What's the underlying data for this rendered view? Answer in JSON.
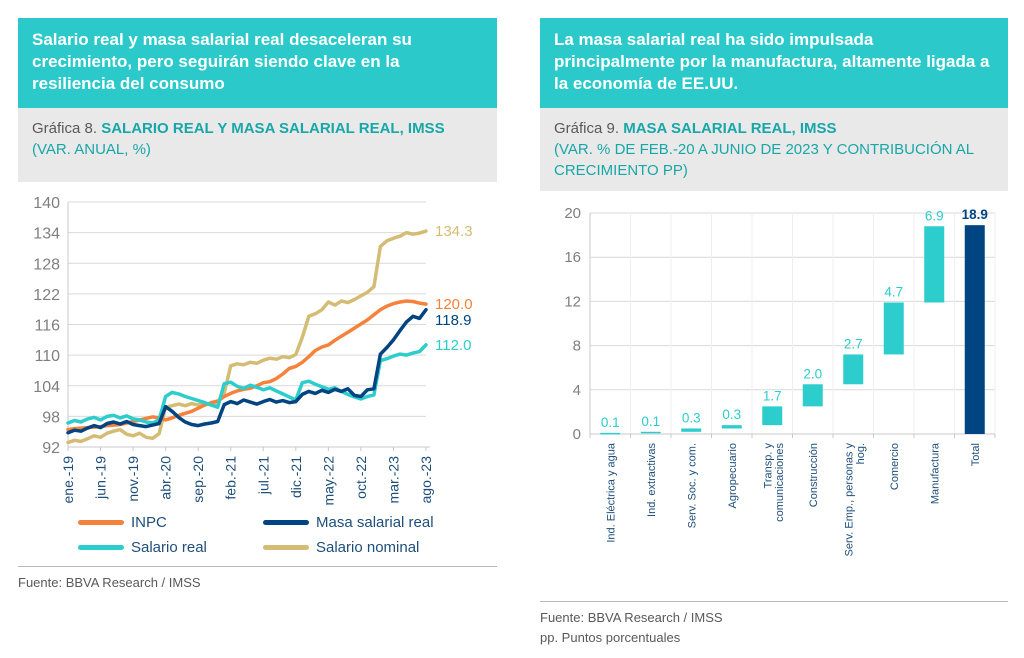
{
  "colors": {
    "aqua": "#2cc9ca",
    "aqua_heading": "#18a7a8",
    "navy": "#004481",
    "navy_text": "#1f4e79",
    "orange": "#f5823c",
    "gold": "#d5bc74",
    "gray_text": "#595959",
    "axis_gray": "#7f7f7f",
    "grid_gray": "#d9d9d9",
    "band_gray": "#e9e9e9"
  },
  "left_panel": {
    "banner": "Salario real y masa salarial real desaceleran su crecimiento, pero seguirán siendo clave en la resiliencia del consumo",
    "caption_prefix": "Gráfica 8.",
    "caption_title": "SALARIO REAL Y MASA SALARIAL REAL, IMSS",
    "caption_subtitle": "(VAR. ANUAL, %)",
    "fuente": "Fuente: BBVA Research / IMSS"
  },
  "right_panel": {
    "banner": "La masa salarial real ha sido impulsada principalmente por la manufactura, altamente ligada a la economía de EE.UU.",
    "caption_prefix": "Gráfica 9.",
    "caption_title": "MASA SALARIAL REAL, IMSS",
    "caption_subtitle": "(VAR. % DE FEB.-20 A JUNIO DE 2023 Y CONTRIBUCIÓN AL CRECIMIENTO PP)",
    "fuente": "Fuente: BBVA Research / IMSS",
    "pp_note": "pp. Puntos porcentuales"
  },
  "chart_data": [
    {
      "type": "line",
      "title": "SALARIO REAL Y MASA SALARIAL REAL, IMSS (VAR. ANUAL, %)",
      "ylim": [
        92,
        140
      ],
      "yticks": [
        92,
        98,
        104,
        110,
        116,
        122,
        128,
        134,
        140
      ],
      "grid": true,
      "x_tick_labels": [
        "ene.-19",
        "jun.-19",
        "nov.-19",
        "abr.-20",
        "sep.-20",
        "feb.-21",
        "jul.-21",
        "dic.-21",
        "may.-22",
        "oct.-22",
        "mar.-23",
        "ago.-23"
      ],
      "x_tick_positions": [
        0,
        5,
        10,
        15,
        20,
        25,
        30,
        35,
        40,
        45,
        50,
        55
      ],
      "legend_position": "bottom",
      "series": [
        {
          "name": "INPC",
          "color": "#f5823c",
          "end_label": "120.0",
          "values": [
            95.4,
            95.6,
            95.7,
            95.8,
            95.9,
            96.0,
            96.2,
            96.3,
            96.4,
            96.7,
            97.0,
            97.3,
            97.6,
            97.9,
            97.7,
            97.3,
            97.7,
            98.2,
            98.6,
            99.0,
            99.6,
            100.2,
            100.7,
            101.0,
            101.9,
            102.5,
            103.0,
            103.3,
            103.5,
            104.0,
            104.6,
            104.8,
            105.4,
            106.3,
            107.4,
            107.8,
            108.6,
            109.7,
            110.9,
            111.6,
            112.0,
            112.9,
            113.7,
            114.5,
            115.3,
            116.1,
            116.9,
            117.9,
            118.9,
            119.6,
            120.1,
            120.4,
            120.6,
            120.5,
            120.2,
            120.0
          ]
        },
        {
          "name": "Masa salarial real",
          "color": "#004481",
          "end_label": "118.9",
          "values": [
            94.8,
            95.3,
            95.1,
            95.7,
            96.2,
            95.8,
            96.6,
            96.9,
            96.5,
            97.0,
            96.4,
            96.2,
            96.0,
            96.3,
            96.6,
            99.9,
            99.0,
            97.8,
            96.9,
            96.4,
            96.2,
            96.5,
            96.7,
            97.0,
            100.3,
            100.9,
            100.5,
            101.2,
            100.8,
            100.4,
            100.9,
            101.3,
            100.8,
            101.1,
            100.7,
            100.9,
            102.3,
            102.9,
            102.5,
            103.1,
            102.7,
            103.3,
            102.9,
            103.4,
            102.1,
            101.9,
            103.2,
            103.4,
            110.2,
            111.5,
            113.0,
            114.8,
            116.5,
            117.6,
            117.2,
            118.9
          ]
        },
        {
          "name": "Salario real",
          "color": "#2dcccd",
          "end_label": "112.0",
          "values": [
            96.7,
            97.2,
            96.9,
            97.5,
            97.8,
            97.3,
            98.0,
            98.2,
            97.7,
            98.1,
            97.5,
            97.3,
            96.9,
            96.7,
            97.3,
            101.9,
            102.7,
            102.4,
            101.9,
            101.5,
            101.1,
            100.7,
            100.2,
            99.8,
            104.4,
            104.7,
            103.9,
            103.5,
            104.1,
            103.7,
            103.2,
            103.6,
            103.0,
            102.4,
            101.8,
            101.2,
            104.6,
            104.9,
            104.3,
            103.8,
            103.3,
            103.6,
            102.9,
            102.3,
            101.8,
            101.4,
            101.9,
            102.2,
            108.9,
            109.3,
            109.8,
            110.2,
            110.0,
            110.4,
            110.7,
            112.0
          ]
        },
        {
          "name": "Salario nominal",
          "color": "#d5bc74",
          "end_label": "134.3",
          "values": [
            92.9,
            93.3,
            93.1,
            93.6,
            94.2,
            93.9,
            94.7,
            95.1,
            95.4,
            94.5,
            94.2,
            94.7,
            93.9,
            93.7,
            94.6,
            99.8,
            100.1,
            100.4,
            100.1,
            100.5,
            100.2,
            100.6,
            100.3,
            100.7,
            102.5,
            107.9,
            108.3,
            108.1,
            108.6,
            108.4,
            109.0,
            109.4,
            109.2,
            109.7,
            109.5,
            110.1,
            113.5,
            117.6,
            118.1,
            118.9,
            120.4,
            119.8,
            120.6,
            120.3,
            120.9,
            121.6,
            122.3,
            123.4,
            131.3,
            132.4,
            132.9,
            133.3,
            134.0,
            133.7,
            133.9,
            134.3
          ]
        }
      ]
    },
    {
      "type": "waterfall",
      "title": "MASA SALARIAL REAL, IMSS (VAR. % DE FEB.-20 A JUNIO DE 2023 Y CONTRIBUCIÓN AL CRECIMIENTO PP)",
      "ylim": [
        0,
        20
      ],
      "yticks": [
        0,
        4,
        8,
        12,
        16,
        20
      ],
      "grid": true,
      "categories": [
        "Ind. Eléctrica y agua",
        "Ind. extractivas",
        "Serv. Soc. y com.",
        "Agropecuario",
        "Transp. y\ncomunicaciones",
        "Construcción",
        "Serv. Emp., personas y\nhog.",
        "Comercio",
        "Manufactura",
        "Total"
      ],
      "values": [
        0.1,
        0.1,
        0.3,
        0.3,
        1.7,
        2.0,
        2.7,
        4.7,
        6.9,
        18.9
      ],
      "starts": [
        0,
        0.1,
        0.2,
        0.5,
        0.8,
        2.5,
        4.5,
        7.2,
        11.9,
        0
      ],
      "labels": [
        "0.1",
        "0.1",
        "0.3",
        "0.3",
        "1.7",
        "2.0",
        "2.7",
        "4.7",
        "6.9",
        "18.9"
      ],
      "is_total": [
        false,
        false,
        false,
        false,
        false,
        false,
        false,
        false,
        false,
        true
      ],
      "bar_color": "#2dcccd",
      "total_color": "#004481"
    }
  ]
}
